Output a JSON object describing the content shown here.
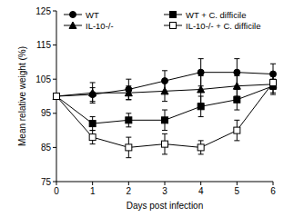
{
  "chart_data": {
    "type": "line",
    "x_label": "Days post infection",
    "y_label": "Mean relative weight (%)",
    "x": [
      0,
      1,
      2,
      3,
      4,
      5,
      6
    ],
    "xlim": [
      0,
      6
    ],
    "xticks": [
      0,
      1,
      2,
      3,
      4,
      5,
      6
    ],
    "ylim": [
      75,
      125
    ],
    "yticks": [
      75,
      85,
      95,
      105,
      115,
      125
    ],
    "legend": "top",
    "series": [
      {
        "name": "WT",
        "color": "#000000",
        "marker": "circle",
        "values": [
          100,
          100.5,
          102,
          104.5,
          107,
          107,
          106.5
        ],
        "errors": [
          0,
          2,
          3,
          3,
          4,
          4,
          3
        ]
      },
      {
        "name": "IL-10-/-",
        "color": "#000000",
        "marker": "triangle",
        "values": [
          100,
          101,
          101,
          101.5,
          102,
          103,
          103.5
        ],
        "errors": [
          0,
          3,
          2,
          3,
          4,
          3,
          3
        ]
      },
      {
        "name": "WT + C. difficile",
        "color": "#000000",
        "marker": "square",
        "values": [
          100,
          92,
          93,
          93,
          97,
          99,
          103
        ],
        "errors": [
          0,
          2,
          2,
          3,
          3,
          3,
          2
        ]
      },
      {
        "name": "IL-10-/- + C. difficile",
        "color": "#000000",
        "marker": "square-open",
        "values": [
          100,
          88,
          85,
          86,
          85,
          90,
          104
        ],
        "errors": [
          0,
          2,
          3,
          3,
          2,
          3,
          2
        ]
      }
    ]
  }
}
